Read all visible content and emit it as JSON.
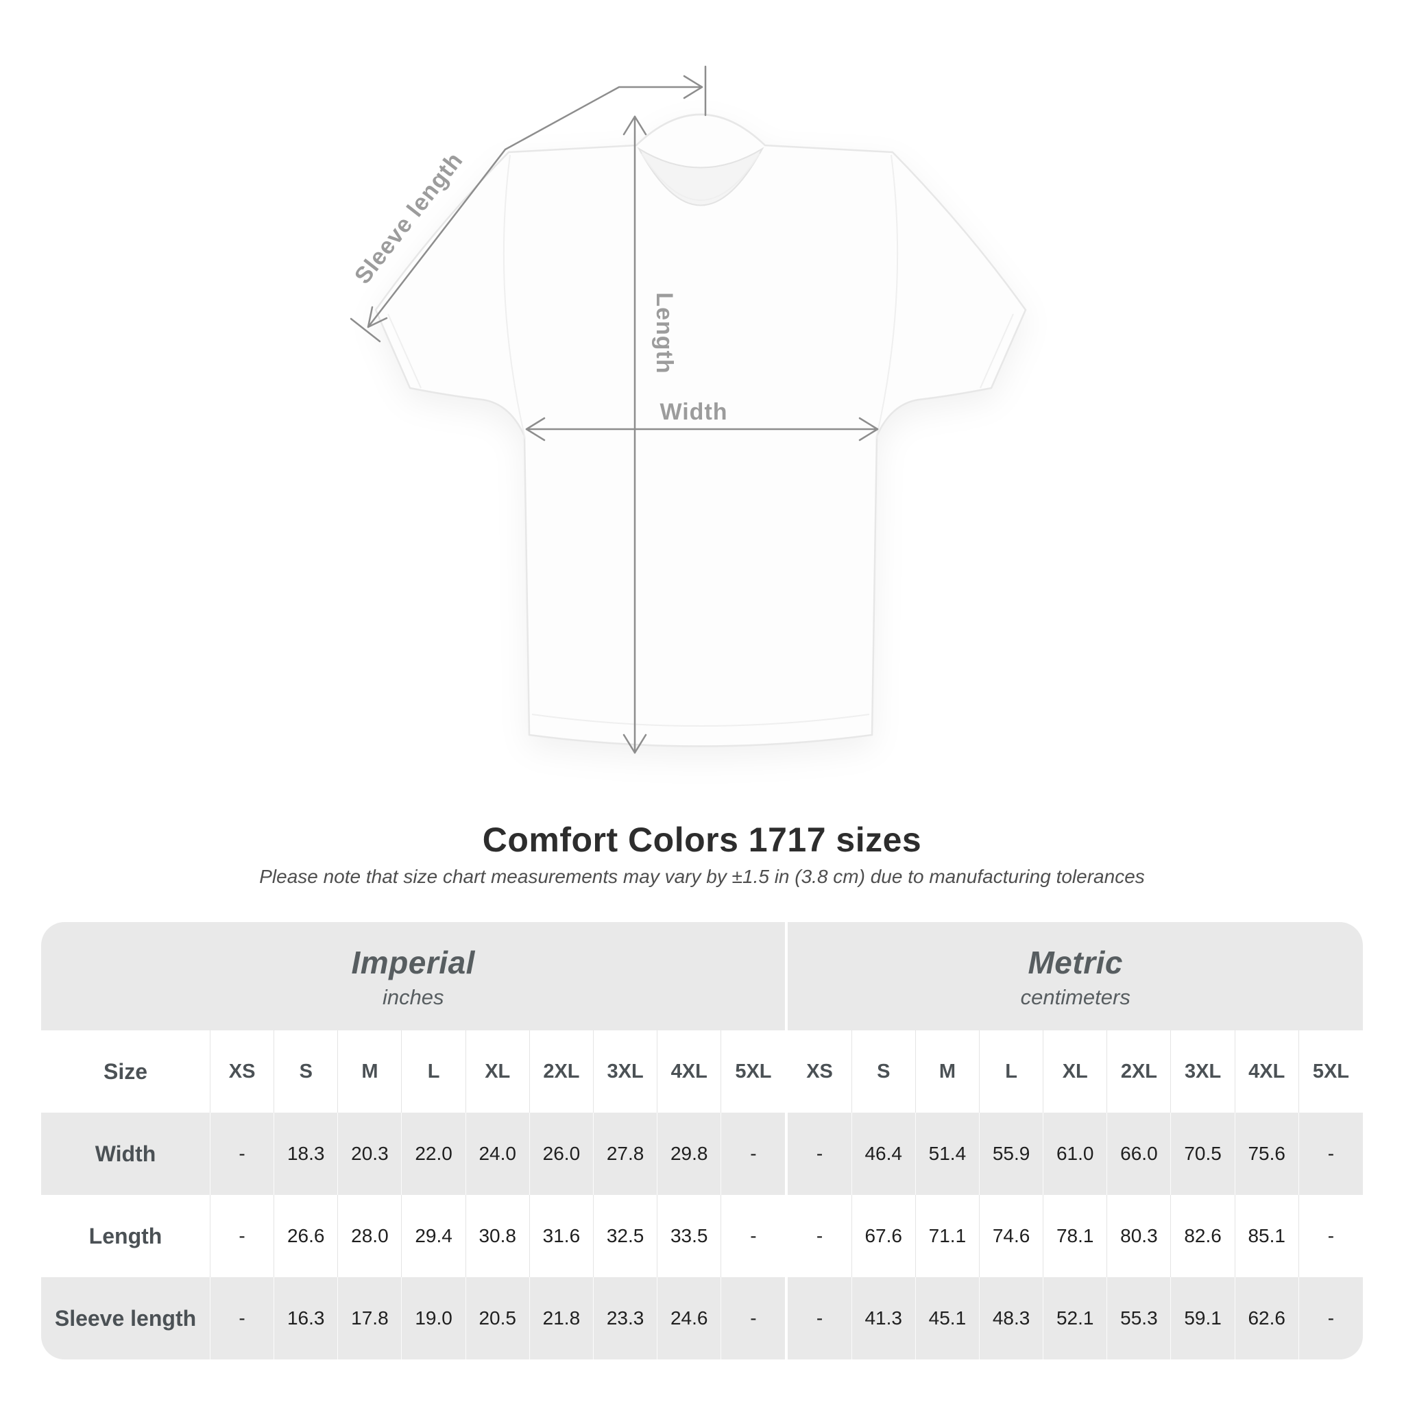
{
  "page": {
    "background": "#ffffff"
  },
  "diagram": {
    "sleeve_length_label": "Sleeve length",
    "length_label": "Length",
    "width_label": "Width",
    "line_color": "#8d8d8d",
    "label_color": "#9c9c9c"
  },
  "title": "Comfort Colors 1717 sizes",
  "subtitle": "Please note that size chart measurements may vary by ±1.5 in (3.8 cm) due to manufacturing tolerances",
  "chart_data": {
    "type": "table",
    "title": "Comfort Colors 1717 sizes",
    "note": "Please note that size chart measurements may vary by ±1.5 in (3.8 cm) due to manufacturing tolerances",
    "size_label": "Size",
    "column_groups": [
      {
        "label": "Imperial",
        "unit": "inches",
        "sizes": [
          "XS",
          "S",
          "M",
          "L",
          "XL",
          "2XL",
          "3XL",
          "4XL",
          "5XL"
        ]
      },
      {
        "label": "Metric",
        "unit": "centimeters",
        "sizes": [
          "XS",
          "S",
          "M",
          "L",
          "XL",
          "2XL",
          "3XL",
          "4XL",
          "5XL"
        ]
      }
    ],
    "rows": [
      {
        "label": "Width",
        "imperial": [
          "-",
          "18.3",
          "20.3",
          "22.0",
          "24.0",
          "26.0",
          "27.8",
          "29.8",
          "-"
        ],
        "metric": [
          "-",
          "46.4",
          "51.4",
          "55.9",
          "61.0",
          "66.0",
          "70.5",
          "75.6",
          "-"
        ]
      },
      {
        "label": "Length",
        "imperial": [
          "-",
          "26.6",
          "28.0",
          "29.4",
          "30.8",
          "31.6",
          "32.5",
          "33.5",
          "-"
        ],
        "metric": [
          "-",
          "67.6",
          "71.1",
          "74.6",
          "78.1",
          "80.3",
          "82.6",
          "85.1",
          "-"
        ]
      },
      {
        "label": "Sleeve length",
        "imperial": [
          "-",
          "16.3",
          "17.8",
          "19.0",
          "20.5",
          "21.8",
          "23.3",
          "24.6",
          "-"
        ],
        "metric": [
          "-",
          "41.3",
          "45.1",
          "48.3",
          "52.1",
          "55.3",
          "59.1",
          "62.6",
          "-"
        ]
      }
    ],
    "row_stripe_colors": {
      "gray": "#e9e9e9",
      "white": "#ffffff"
    }
  }
}
